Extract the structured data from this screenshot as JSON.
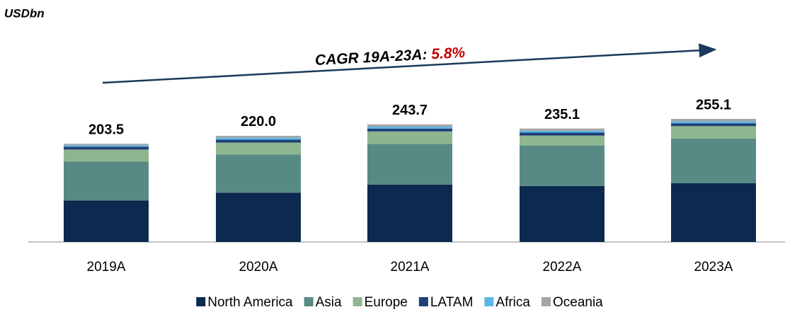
{
  "chart_data": {
    "type": "stacked_bar",
    "title": "USDbn",
    "annotation": {
      "text": "CAGR 19A-23A:",
      "value": "5.8%"
    },
    "categories": [
      "2019A",
      "2020A",
      "2021A",
      "2022A",
      "2023A"
    ],
    "series": [
      {
        "name": "North America",
        "color": "#0c2a4f",
        "values": [
          86,
          102,
          119,
          116,
          122
        ]
      },
      {
        "name": "Asia",
        "color": "#588a85",
        "values": [
          80.5,
          79,
          84,
          84,
          92
        ]
      },
      {
        "name": "Europe",
        "color": "#8db68f",
        "values": [
          25,
          25,
          26,
          20.5,
          26
        ]
      },
      {
        "name": "LATAM",
        "color": "#1f3f78",
        "values": [
          6,
          6,
          6,
          6,
          6
        ]
      },
      {
        "name": "Africa",
        "color": "#5bb8e6",
        "values": [
          3,
          4,
          4,
          4,
          4
        ]
      },
      {
        "name": "Oceania",
        "color": "#a6a6a6",
        "values": [
          3,
          4,
          4.7,
          4.6,
          5.1
        ]
      }
    ],
    "totals": [
      203.5,
      220.0,
      243.7,
      235.1,
      255.1
    ],
    "total_labels": [
      "203.5",
      "220.0",
      "243.7",
      "235.1",
      "255.1"
    ]
  }
}
